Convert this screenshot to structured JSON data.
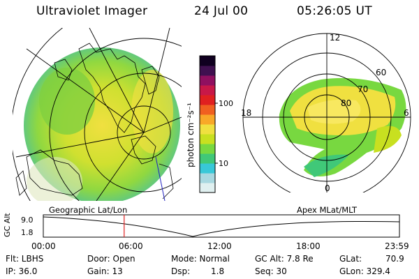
{
  "header": {
    "title": "Ultraviolet Imager",
    "date": "24 Jul 00",
    "time": "05:26:05 UT"
  },
  "left_panel": {
    "label": "Geographic Lat/Lon"
  },
  "right_panel": {
    "label": "Apex MLat/MLT",
    "mlt_labels": [
      "12",
      "18",
      "6",
      "0"
    ],
    "lat_labels": [
      "60",
      "70",
      "80"
    ]
  },
  "colorbar": {
    "unit_label": "photon cm⁻²s⁻¹",
    "tick_labels": [
      "100",
      "10"
    ],
    "colors": [
      "#e0f0f0",
      "#a8d8e0",
      "#38c8d8",
      "#40c878",
      "#78d840",
      "#c8e020",
      "#f0e040",
      "#f8a828",
      "#f06020",
      "#e02020",
      "#c81848",
      "#901060",
      "#401050",
      "#100020"
    ]
  },
  "altitude_plot": {
    "axis_label": "GC Alt",
    "y_ticks": [
      "9.0",
      "1.8"
    ],
    "x_ticks": [
      "00:00",
      "06:00",
      "12:00",
      "18:00",
      "23:59"
    ],
    "current_time_fraction": 0.227
  },
  "info": {
    "flt": "Flt: LBHS",
    "ip": "IP: 36.0",
    "door": "Door: Open",
    "gain": "Gain: 13",
    "mode": "Mode: Normal",
    "dsp": "Dsp:",
    "dsp_val": "1.8",
    "gc_alt": "GC Alt: 7.8 Re",
    "seq": "Seq: 30",
    "glat": "GLat:",
    "glat_val": "70.9",
    "glon": "GLon: 329.4"
  }
}
